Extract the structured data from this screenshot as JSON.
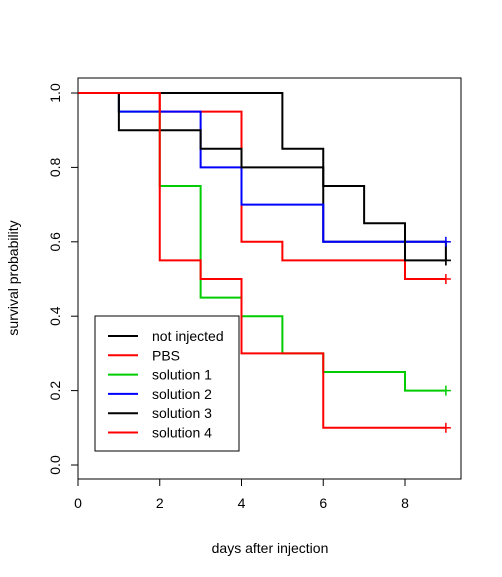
{
  "chart_data": {
    "type": "line",
    "step": true,
    "xlabel": "days after injection",
    "ylabel": "survival probability",
    "xlim": [
      0,
      9
    ],
    "ylim": [
      0,
      1
    ],
    "x_ticks": [
      0,
      2,
      4,
      6,
      8
    ],
    "y_ticks": [
      0.0,
      0.2,
      0.4,
      0.6,
      0.8,
      1.0
    ],
    "x_tick_labels": [
      "0",
      "2",
      "4",
      "6",
      "8"
    ],
    "y_tick_labels": [
      "0.0",
      "0.2",
      "0.4",
      "0.6",
      "0.8",
      "1.0"
    ],
    "legend_position": "bottom-left",
    "grid": false,
    "series": [
      {
        "name": "not injected",
        "color": "#000000",
        "x": [
          0,
          1,
          3,
          5,
          6,
          9
        ],
        "y": [
          1.0,
          1.0,
          1.0,
          0.85,
          0.6,
          0.55
        ],
        "censor_at": 9,
        "censor_y": 0.55
      },
      {
        "name": "PBS",
        "color": "#ff0000",
        "x": [
          0,
          1,
          2,
          4,
          5,
          8,
          9
        ],
        "y": [
          1.0,
          1.0,
          0.95,
          0.6,
          0.55,
          0.5,
          0.5
        ],
        "censor_at": 9,
        "censor_y": 0.5
      },
      {
        "name": "solution 1",
        "color": "#00cd00",
        "x": [
          0,
          1,
          2,
          3,
          4,
          5,
          6,
          8,
          9
        ],
        "y": [
          1.0,
          0.95,
          0.75,
          0.45,
          0.4,
          0.3,
          0.25,
          0.2,
          0.2
        ],
        "censor_at": 9,
        "censor_y": 0.2
      },
      {
        "name": "solution 2",
        "color": "#0000ff",
        "x": [
          0,
          1,
          3,
          4,
          6,
          9
        ],
        "y": [
          1.0,
          0.95,
          0.8,
          0.7,
          0.6,
          0.6
        ],
        "censor_at": 9,
        "censor_y": 0.6
      },
      {
        "name": "solution 3",
        "color": "#000000",
        "x": [
          0,
          1,
          3,
          4,
          6,
          7,
          8,
          9
        ],
        "y": [
          1.0,
          0.9,
          0.85,
          0.8,
          0.75,
          0.65,
          0.55,
          0.55
        ],
        "censor_at": 9,
        "censor_y": 0.55
      },
      {
        "name": "solution 4",
        "color": "#ff0000",
        "x": [
          0,
          2,
          3,
          4,
          5,
          6,
          9
        ],
        "y": [
          1.0,
          0.55,
          0.5,
          0.3,
          0.3,
          0.1,
          0.1
        ],
        "censor_at": 9,
        "censor_y": 0.1
      }
    ]
  }
}
